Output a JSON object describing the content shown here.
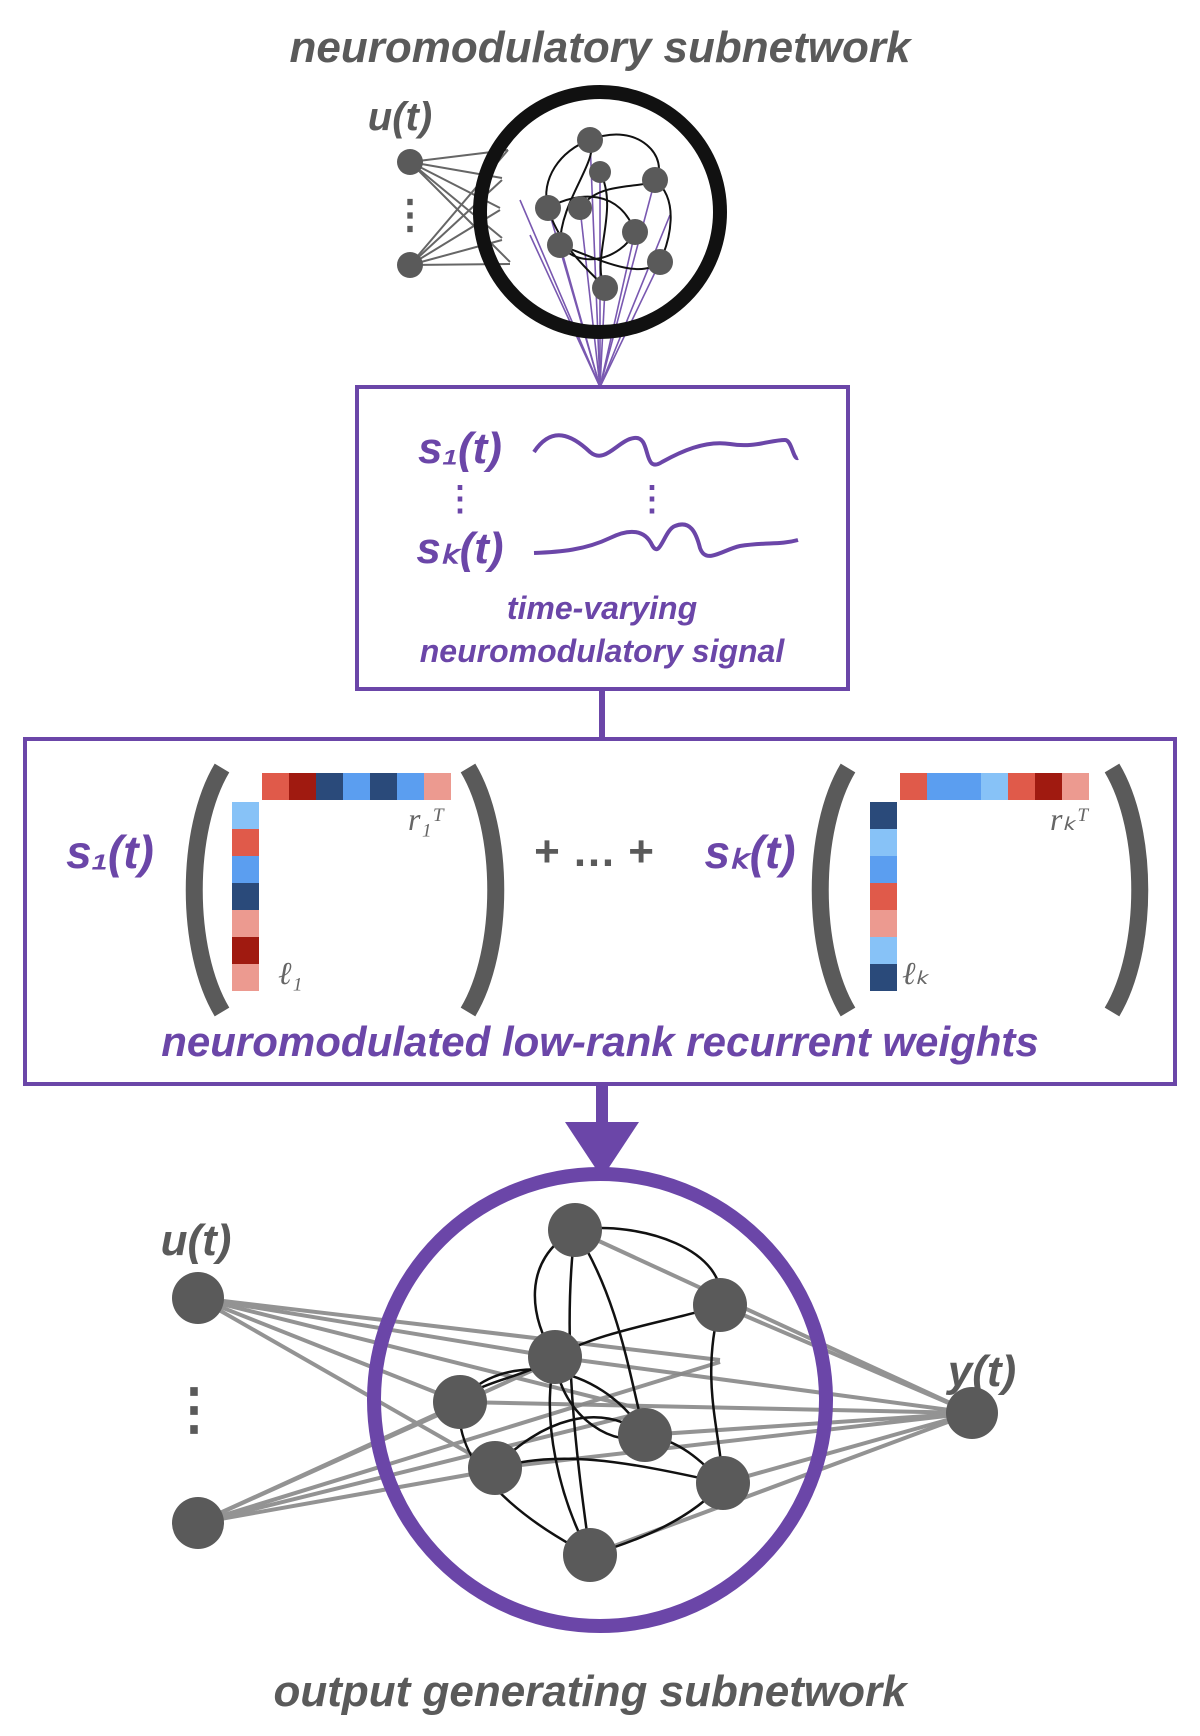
{
  "colors": {
    "node": "#5a5a5a",
    "purple": "#6b46a8",
    "dark_blue": "#2a4a7a",
    "mid_blue": "#5b9ef0",
    "light_blue": "#87c2f7",
    "red": "#e05a4a",
    "light_red": "#ec9a90",
    "dark_red": "#a01a10"
  },
  "top_network": {
    "title": "neuromodulatory subnetwork",
    "input_label": "u(t)",
    "input_dots": "⋮"
  },
  "signal_box": {
    "first_label": "s₁(t)",
    "last_label": "sₖ(t)",
    "caption_line1": "time-varying",
    "caption_line2": "neuromodulatory signal",
    "dots": "⋮"
  },
  "weights_box": {
    "term1_coeff": "s₁(t)",
    "termK_coeff": "sₖ(t)",
    "plus_dots": "+ … +",
    "l1_label": "ℓ₁",
    "r1_label": "r₁ᵀ",
    "lK_label": "ℓₖ",
    "rK_label": "rₖᵀ",
    "caption": "neuromodulated low-rank recurrent weights",
    "r1_colors": [
      "red",
      "dark_red",
      "dark_blue",
      "mid_blue",
      "dark_blue",
      "mid_blue",
      "light_red"
    ],
    "l1_colors": [
      "light_blue",
      "red",
      "mid_blue",
      "dark_blue",
      "light_red",
      "dark_red",
      "light_red"
    ],
    "rK_colors": [
      "red",
      "mid_blue",
      "mid_blue",
      "light_blue",
      "red",
      "dark_red",
      "light_red"
    ],
    "lK_colors": [
      "dark_blue",
      "light_blue",
      "mid_blue",
      "red",
      "light_red",
      "light_blue",
      "dark_blue"
    ]
  },
  "bottom_network": {
    "title": "output generating subnetwork",
    "input_label": "u(t)",
    "output_label": "y(t)",
    "input_dots": "⋮"
  }
}
